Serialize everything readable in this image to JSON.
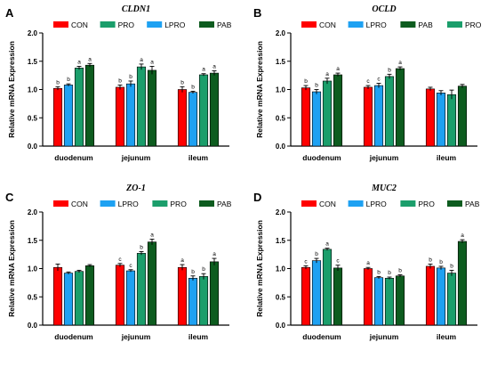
{
  "colors": {
    "CON": "#ff0000",
    "PRO": "#1b9e6b",
    "LPRO": "#1ea1f2",
    "PAB": "#0d5c1f",
    "axis": "#000000"
  },
  "chart_data": [
    {
      "letter": "A",
      "title": "CLDN1",
      "type": "bar",
      "ylabel": "Relative mRNA Expression",
      "ylim": [
        0,
        2.0
      ],
      "yticks": [
        "0.0",
        "0.5",
        "1.0",
        "1.5",
        "2.0"
      ],
      "categories": [
        "duodenum",
        "jejunum",
        "ileum"
      ],
      "legend": [
        "CON",
        "PRO",
        "LPRO",
        "PAB"
      ],
      "series": [
        {
          "name": "CON",
          "values": [
            1.02,
            1.04,
            1.0
          ],
          "errors": [
            0.03,
            0.04,
            0.05
          ],
          "labels": [
            "b",
            "b",
            "b"
          ]
        },
        {
          "name": "LPRO",
          "values": [
            1.08,
            1.1,
            0.95
          ],
          "errors": [
            0.02,
            0.05,
            0.02
          ],
          "labels": [
            "b",
            "b",
            "b"
          ]
        },
        {
          "name": "PRO",
          "values": [
            1.38,
            1.4,
            1.26
          ],
          "errors": [
            0.03,
            0.05,
            0.02
          ],
          "labels": [
            "a",
            "a",
            "a"
          ]
        },
        {
          "name": "PAB",
          "values": [
            1.43,
            1.34,
            1.29
          ],
          "errors": [
            0.03,
            0.07,
            0.04
          ],
          "labels": [
            "a",
            "a",
            "a"
          ]
        }
      ]
    },
    {
      "letter": "B",
      "title": "OCLD",
      "type": "bar",
      "ylabel": "Relative mRNA Expression",
      "ylim": [
        0,
        2.0
      ],
      "yticks": [
        "0.0",
        "0.5",
        "1.0",
        "1.5",
        "2.0"
      ],
      "categories": [
        "duodenum",
        "jejunum",
        "ileum"
      ],
      "legend": [
        "CON",
        "LPRO",
        "PAB",
        "PRO"
      ],
      "series": [
        {
          "name": "CON",
          "values": [
            1.03,
            1.04,
            1.01
          ],
          "errors": [
            0.04,
            0.03,
            0.03
          ],
          "labels": [
            "b",
            "c",
            ""
          ]
        },
        {
          "name": "LPRO",
          "values": [
            0.96,
            1.07,
            0.94
          ],
          "errors": [
            0.04,
            0.04,
            0.04
          ],
          "labels": [
            "b",
            "c",
            ""
          ]
        },
        {
          "name": "PRO",
          "values": [
            1.15,
            1.23,
            0.91
          ],
          "errors": [
            0.05,
            0.04,
            0.08
          ],
          "labels": [
            "a",
            "b",
            ""
          ]
        },
        {
          "name": "PAB",
          "values": [
            1.26,
            1.37,
            1.06
          ],
          "errors": [
            0.03,
            0.03,
            0.03
          ],
          "labels": [
            "a",
            "a",
            ""
          ]
        }
      ]
    },
    {
      "letter": "C",
      "title": "ZO-1",
      "type": "bar",
      "ylabel": "Relative mRNA Expression",
      "ylim": [
        0,
        2.0
      ],
      "yticks": [
        "0.0",
        "0.5",
        "1.0",
        "1.5",
        "2.0"
      ],
      "categories": [
        "duodenum",
        "jejunum",
        "ileum"
      ],
      "legend": [
        "CON",
        "LPRO",
        "PRO",
        "PAB"
      ],
      "series": [
        {
          "name": "CON",
          "values": [
            1.02,
            1.06,
            1.02
          ],
          "errors": [
            0.06,
            0.03,
            0.05
          ],
          "labels": [
            "",
            "c",
            "a"
          ]
        },
        {
          "name": "LPRO",
          "values": [
            0.92,
            0.96,
            0.83
          ],
          "errors": [
            0.02,
            0.02,
            0.04
          ],
          "labels": [
            "",
            "c",
            "b"
          ]
        },
        {
          "name": "PRO",
          "values": [
            0.95,
            1.27,
            0.86
          ],
          "errors": [
            0.02,
            0.03,
            0.05
          ],
          "labels": [
            "",
            "b",
            "b"
          ]
        },
        {
          "name": "PAB",
          "values": [
            1.05,
            1.47,
            1.12
          ],
          "errors": [
            0.02,
            0.05,
            0.06
          ],
          "labels": [
            "",
            "a",
            "a"
          ]
        }
      ]
    },
    {
      "letter": "D",
      "title": "MUC2",
      "type": "bar",
      "ylabel": "Relative mRNA Expression",
      "ylim": [
        0,
        2.0
      ],
      "yticks": [
        "0.0",
        "0.5",
        "1.0",
        "1.5",
        "2.0"
      ],
      "categories": [
        "duodenum",
        "jejunum",
        "ileum"
      ],
      "legend": [
        "CON",
        "LPRO",
        "PRO",
        "PAB"
      ],
      "series": [
        {
          "name": "CON",
          "values": [
            1.02,
            1.0,
            1.04
          ],
          "errors": [
            0.03,
            0.02,
            0.04
          ],
          "labels": [
            "c",
            "a",
            "b"
          ]
        },
        {
          "name": "LPRO",
          "values": [
            1.14,
            0.84,
            1.01
          ],
          "errors": [
            0.04,
            0.02,
            0.03
          ],
          "labels": [
            "b",
            "b",
            "b"
          ]
        },
        {
          "name": "PRO",
          "values": [
            1.34,
            0.83,
            0.92
          ],
          "errors": [
            0.02,
            0.02,
            0.05
          ],
          "labels": [
            "a",
            "b",
            "b"
          ]
        },
        {
          "name": "PAB",
          "values": [
            1.01,
            0.87,
            1.48
          ],
          "errors": [
            0.05,
            0.02,
            0.03
          ],
          "labels": [
            "c",
            "b",
            "a"
          ]
        }
      ]
    }
  ]
}
